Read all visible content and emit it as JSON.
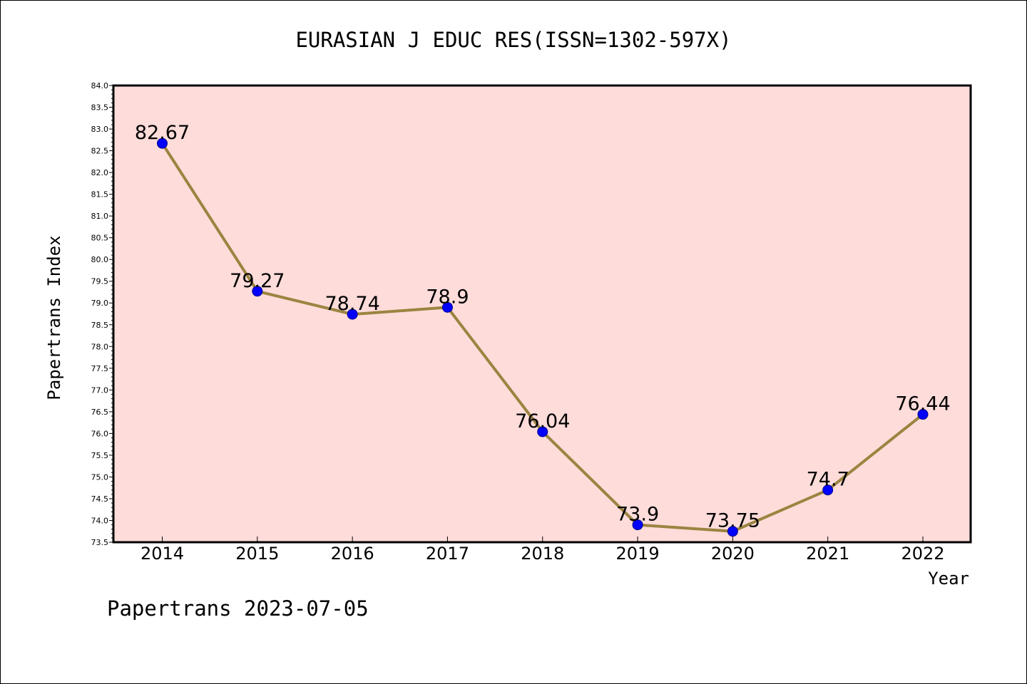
{
  "chart_data": {
    "type": "line",
    "title": "EURASIAN J EDUC RES(ISSN=1302-597X)",
    "xlabel": "Year",
    "ylabel": "Papertrans Index",
    "x": [
      "2014",
      "2015",
      "2016",
      "2017",
      "2018",
      "2019",
      "2020",
      "2021",
      "2022"
    ],
    "series": [
      {
        "values": [
          82.67,
          79.27,
          78.74,
          78.9,
          76.04,
          73.9,
          73.75,
          74.7,
          76.44
        ],
        "labels": [
          "82.67",
          "79.27",
          "78.74",
          "78.9",
          "76.04",
          "73.9",
          "73.75",
          "74.7",
          "76.44"
        ]
      }
    ],
    "ylim": [
      73.5,
      84.0
    ],
    "y_ticks": [
      "73.5",
      "74.0",
      "74.5",
      "75.0",
      "75.5",
      "76.0",
      "76.5",
      "77.0",
      "77.5",
      "78.0",
      "78.5",
      "79.0",
      "79.5",
      "80.0",
      "80.5",
      "81.0",
      "81.5",
      "82.0",
      "82.5",
      "83.0",
      "83.5",
      "84.0"
    ],
    "grid": false,
    "colors": {
      "plot_bg": "#fddcda",
      "line": "#9b8440",
      "marker": "#0000ff"
    }
  },
  "footer": {
    "watermark": "Papertrans 2023-07-05"
  }
}
